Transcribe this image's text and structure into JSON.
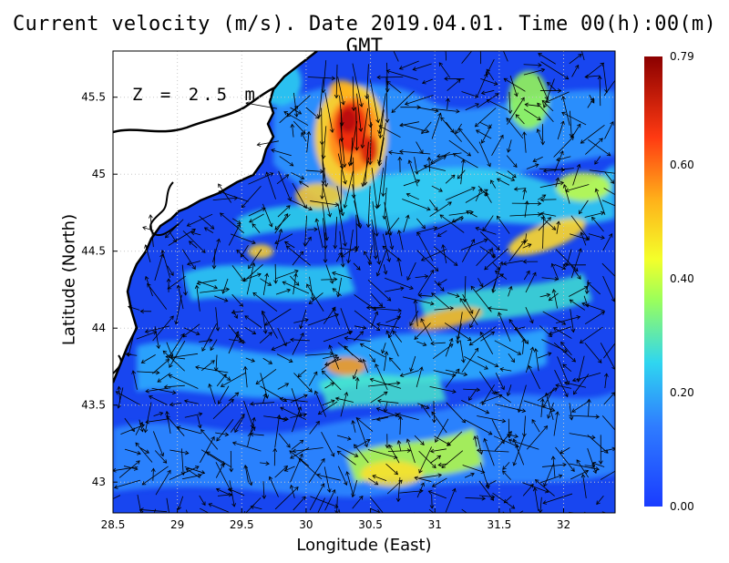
{
  "title": "Current velocity (m/s). Date 2019.04.01. Time 00(h):00(m) GMT",
  "depth_label": "Z = 2.5 m",
  "chart_data": {
    "type": "heatmap",
    "variable": "Current velocity",
    "units": "m/s",
    "date": "2019.04.01",
    "time": "00(h):00(m) GMT",
    "depth": "2.5 m",
    "xlabel": "Longitude (East)",
    "ylabel": "Latitude (North)",
    "xlim": [
      28.5,
      32.4
    ],
    "ylim": [
      42.8,
      45.8
    ],
    "x_ticks": [
      "28.5",
      "29",
      "29.5",
      "30",
      "30.5",
      "31",
      "31.5",
      "32"
    ],
    "y_ticks": [
      "43",
      "43.5",
      "44",
      "44.5",
      "45",
      "45.5"
    ],
    "colorbar": {
      "min": 0.0,
      "max": 0.79,
      "tick_labels": [
        "0.00",
        "0.20",
        "0.40",
        "0.60",
        "0.79"
      ],
      "colors": [
        "#1a3cff",
        "#3f9dff",
        "#2fe0e8",
        "#d8ff30",
        "#ffd22a",
        "#ff8a1a",
        "#ee2a10",
        "#8b0000"
      ]
    },
    "grid": true,
    "land_color": "#ffffff",
    "coast_color": "#000000",
    "vectors": true
  }
}
